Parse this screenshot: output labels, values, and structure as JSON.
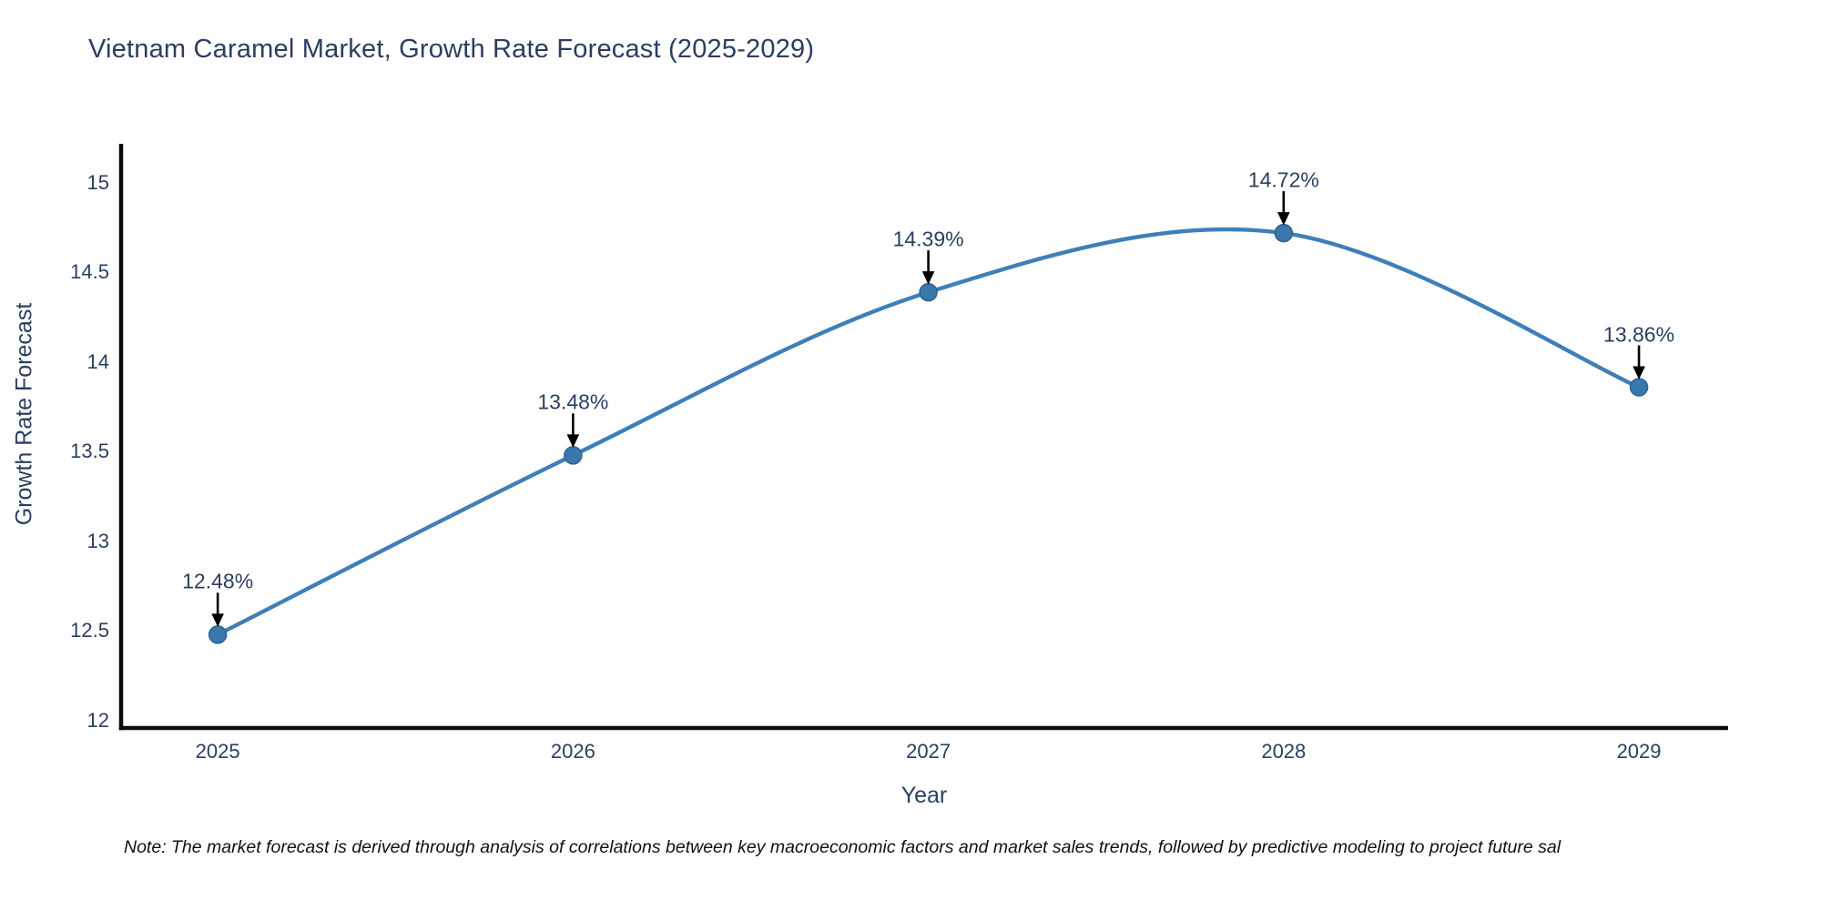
{
  "chart_data": {
    "type": "line",
    "title": "Vietnam Caramel Market, Growth Rate Forecast (2025-2029)",
    "xlabel": "Year",
    "ylabel": "Growth Rate Forecast",
    "x": [
      2025,
      2026,
      2027,
      2028,
      2029
    ],
    "series": [
      {
        "name": "Growth Rate Forecast",
        "values": [
          12.48,
          13.48,
          14.39,
          14.72,
          13.86
        ]
      }
    ],
    "point_labels": [
      "12.48%",
      "13.48%",
      "14.39%",
      "14.72%",
      "13.86%"
    ],
    "x_ticks": [
      "2025",
      "2026",
      "2027",
      "2028",
      "2029"
    ],
    "y_ticks": [
      "12",
      "12.5",
      "13",
      "13.5",
      "14",
      "14.5",
      "15"
    ],
    "y_tick_values": [
      12,
      12.5,
      13,
      13.5,
      14,
      14.5,
      15
    ],
    "x_range": [
      2024.728,
      2029.251
    ],
    "y_range": [
      11.959,
      15.218
    ],
    "line_shape": "spline",
    "grid": false,
    "legend": "none",
    "colors": {
      "line": "#3e7fb8",
      "marker": "#3a77ad",
      "marker_edge": "#2f6391",
      "axis": "#0a0a0a",
      "text": "#2a3f5f",
      "arrow": "#000000"
    }
  },
  "footnote": "Note: The market forecast is derived through analysis of correlations between key macroeconomic factors and market sales trends, followed by predictive modeling to project future sal"
}
